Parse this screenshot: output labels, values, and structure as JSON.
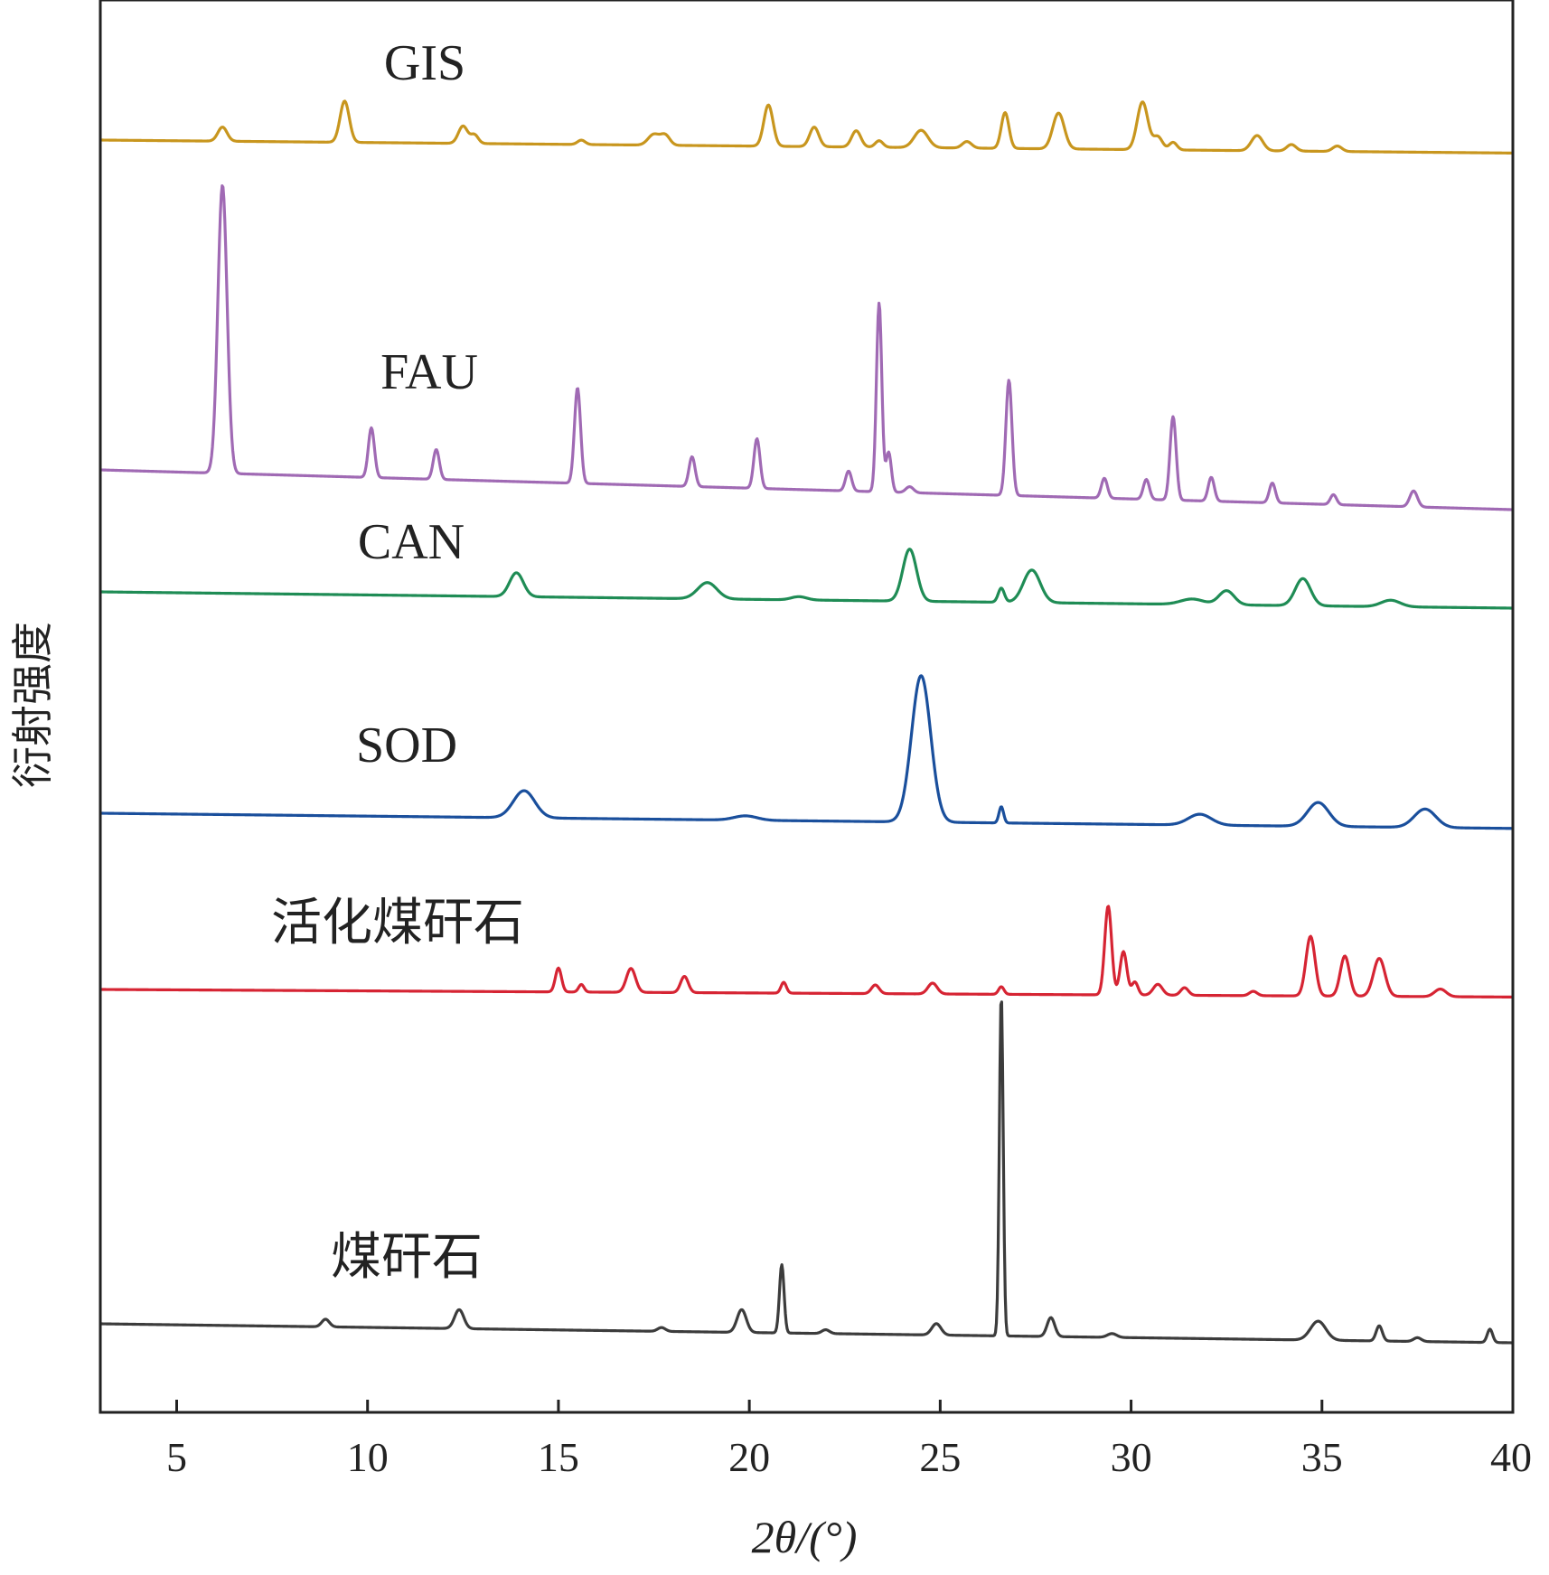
{
  "chart_data": {
    "type": "line",
    "xlabel": "2θ/(°)",
    "ylabel": "衍射强度",
    "xlim": [
      3,
      40
    ],
    "xticks": [
      5,
      10,
      15,
      20,
      25,
      30,
      35,
      40
    ],
    "grid": false,
    "series": [
      {
        "name": "GIS",
        "color": "#c8961e",
        "baseline_start": 0.86,
        "baseline_end": 0.74,
        "peaks": [
          [
            6.2,
            0.13,
            0.12
          ],
          [
            9.4,
            0.38,
            0.12
          ],
          [
            12.5,
            0.16,
            0.12
          ],
          [
            12.8,
            0.08,
            0.1
          ],
          [
            15.6,
            0.04,
            0.1
          ],
          [
            17.5,
            0.1,
            0.15
          ],
          [
            17.8,
            0.09,
            0.12
          ],
          [
            20.5,
            0.38,
            0.12
          ],
          [
            21.7,
            0.18,
            0.12
          ],
          [
            22.8,
            0.15,
            0.12
          ],
          [
            23.4,
            0.06,
            0.1
          ],
          [
            24.5,
            0.16,
            0.18
          ],
          [
            25.7,
            0.06,
            0.12
          ],
          [
            26.7,
            0.33,
            0.1
          ],
          [
            28.1,
            0.33,
            0.15
          ],
          [
            30.3,
            0.44,
            0.14
          ],
          [
            30.7,
            0.12,
            0.12
          ],
          [
            31.1,
            0.07,
            0.1
          ],
          [
            33.3,
            0.14,
            0.15
          ],
          [
            34.2,
            0.06,
            0.12
          ],
          [
            35.4,
            0.05,
            0.12
          ]
        ]
      },
      {
        "name": "FAU",
        "color": "#a06ab4",
        "baseline_start": 0.22,
        "baseline_end": 0.02,
        "peaks": [
          [
            6.2,
            1.45,
            0.12
          ],
          [
            10.1,
            0.25,
            0.08
          ],
          [
            11.8,
            0.15,
            0.08
          ],
          [
            15.5,
            0.48,
            0.08
          ],
          [
            18.5,
            0.15,
            0.08
          ],
          [
            20.2,
            0.25,
            0.08
          ],
          [
            22.6,
            0.1,
            0.08
          ],
          [
            23.4,
            0.95,
            0.07
          ],
          [
            23.65,
            0.2,
            0.07
          ],
          [
            24.2,
            0.03,
            0.1
          ],
          [
            26.8,
            0.58,
            0.08
          ],
          [
            29.3,
            0.1,
            0.08
          ],
          [
            30.4,
            0.1,
            0.08
          ],
          [
            31.1,
            0.42,
            0.08
          ],
          [
            32.1,
            0.12,
            0.08
          ],
          [
            33.7,
            0.1,
            0.08
          ],
          [
            35.3,
            0.05,
            0.08
          ],
          [
            37.4,
            0.08,
            0.1
          ]
        ]
      },
      {
        "name": "CAN",
        "color": "#1f8c55",
        "baseline_start": 0.15,
        "baseline_end": 0.0,
        "peaks": [
          [
            13.9,
            0.22,
            0.18
          ],
          [
            18.9,
            0.15,
            0.25
          ],
          [
            21.3,
            0.03,
            0.2
          ],
          [
            24.2,
            0.48,
            0.18
          ],
          [
            26.6,
            0.13,
            0.08
          ],
          [
            27.4,
            0.3,
            0.22
          ],
          [
            31.6,
            0.05,
            0.3
          ],
          [
            32.5,
            0.13,
            0.2
          ],
          [
            34.5,
            0.25,
            0.2
          ],
          [
            36.8,
            0.06,
            0.25
          ]
        ]
      },
      {
        "name": "SOD",
        "color": "#1a4f9c",
        "baseline_start": 0.14,
        "baseline_end": 0.0,
        "peaks": [
          [
            14.1,
            0.25,
            0.28
          ],
          [
            19.9,
            0.04,
            0.3
          ],
          [
            24.5,
            1.35,
            0.25
          ],
          [
            26.6,
            0.15,
            0.06
          ],
          [
            31.8,
            0.1,
            0.3
          ],
          [
            34.9,
            0.22,
            0.28
          ],
          [
            37.7,
            0.17,
            0.28
          ]
        ]
      },
      {
        "name": "活化煤矸石",
        "color": "#d62433",
        "baseline_start": 0.07,
        "baseline_end": 0.0,
        "peaks": [
          [
            15.0,
            0.22,
            0.08
          ],
          [
            15.6,
            0.07,
            0.07
          ],
          [
            16.9,
            0.22,
            0.12
          ],
          [
            18.3,
            0.15,
            0.1
          ],
          [
            20.9,
            0.1,
            0.07
          ],
          [
            23.3,
            0.08,
            0.1
          ],
          [
            24.8,
            0.1,
            0.12
          ],
          [
            26.6,
            0.07,
            0.07
          ],
          [
            29.4,
            0.82,
            0.09
          ],
          [
            29.8,
            0.4,
            0.09
          ],
          [
            30.1,
            0.12,
            0.08
          ],
          [
            30.7,
            0.1,
            0.12
          ],
          [
            31.4,
            0.07,
            0.1
          ],
          [
            33.2,
            0.04,
            0.1
          ],
          [
            34.7,
            0.55,
            0.12
          ],
          [
            35.6,
            0.37,
            0.12
          ],
          [
            36.5,
            0.35,
            0.15
          ],
          [
            38.1,
            0.07,
            0.15
          ]
        ]
      },
      {
        "name": "煤矸石",
        "color": "#3c3c3c",
        "baseline_start": 0.1,
        "baseline_end": 0.0,
        "peaks": [
          [
            8.9,
            0.04,
            0.1
          ],
          [
            12.4,
            0.1,
            0.12
          ],
          [
            17.7,
            0.02,
            0.1
          ],
          [
            19.8,
            0.12,
            0.12
          ],
          [
            20.85,
            0.36,
            0.06
          ],
          [
            22.0,
            0.02,
            0.1
          ],
          [
            24.9,
            0.06,
            0.12
          ],
          [
            26.6,
            1.8,
            0.05
          ],
          [
            27.9,
            0.1,
            0.1
          ],
          [
            29.5,
            0.02,
            0.12
          ],
          [
            34.9,
            0.1,
            0.2
          ],
          [
            36.5,
            0.08,
            0.08
          ],
          [
            37.5,
            0.02,
            0.1
          ],
          [
            39.4,
            0.07,
            0.07
          ]
        ]
      }
    ]
  }
}
